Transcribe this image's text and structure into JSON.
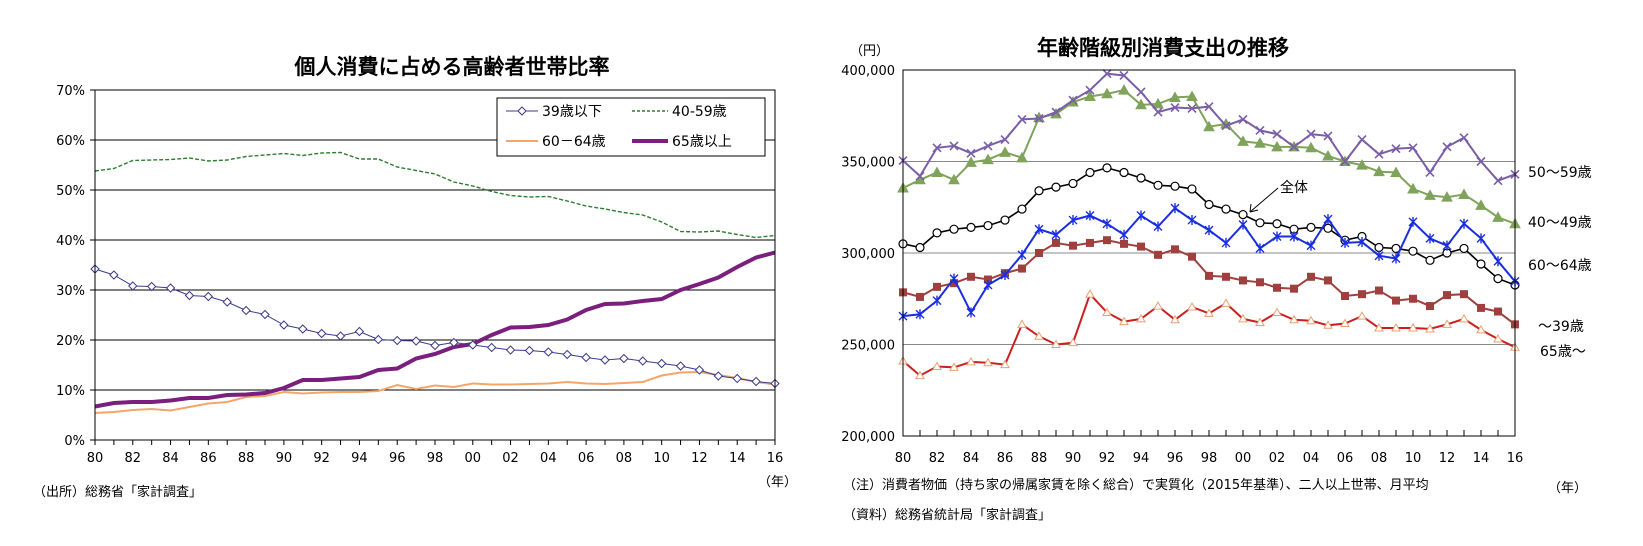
{
  "chart_data": [
    {
      "type": "line",
      "title": "個人消費に占める高齢者世帯比率",
      "x": [
        1980,
        1981,
        1982,
        1983,
        1984,
        1985,
        1986,
        1987,
        1988,
        1989,
        1990,
        1991,
        1992,
        1993,
        1994,
        1995,
        1996,
        1997,
        1998,
        1999,
        2000,
        2001,
        2002,
        2003,
        2004,
        2005,
        2006,
        2007,
        2008,
        2009,
        2010,
        2011,
        2012,
        2013,
        2014,
        2015,
        2016
      ],
      "xticks": [
        "80",
        "82",
        "84",
        "86",
        "88",
        "90",
        "92",
        "94",
        "96",
        "98",
        "00",
        "02",
        "04",
        "06",
        "08",
        "10",
        "12",
        "14",
        "16"
      ],
      "xunit": "（年）",
      "yticks": [
        "0%",
        "10%",
        "20%",
        "30%",
        "40%",
        "50%",
        "60%",
        "70%"
      ],
      "ylim": [
        0,
        70
      ],
      "grid": true,
      "legend_position": "top-right",
      "series": [
        {
          "name": "39歳以下",
          "color": "#3b3b8a",
          "style": "diamond",
          "values": [
            34.2,
            33.0,
            30.8,
            30.7,
            30.4,
            28.9,
            28.7,
            27.6,
            25.9,
            25.1,
            23.0,
            22.2,
            21.3,
            20.8,
            21.7,
            20.1,
            19.9,
            19.8,
            18.9,
            19.5,
            19.0,
            18.5,
            18.0,
            17.9,
            17.6,
            17.1,
            16.5,
            16.0,
            16.3,
            15.8,
            15.3,
            14.8,
            14.0,
            12.8,
            12.3,
            11.7,
            11.3
          ]
        },
        {
          "name": "40-59歳",
          "color": "#2e7d32",
          "style": "dashed",
          "values": [
            53.8,
            54.3,
            55.9,
            56.0,
            56.1,
            56.4,
            55.8,
            56.0,
            56.7,
            57.0,
            57.3,
            56.9,
            57.4,
            57.5,
            56.2,
            56.2,
            54.6,
            53.9,
            53.2,
            51.6,
            50.8,
            49.7,
            48.9,
            48.6,
            48.7,
            47.8,
            46.8,
            46.2,
            45.5,
            45.0,
            43.6,
            41.7,
            41.6,
            41.8,
            41.1,
            40.5,
            40.9
          ]
        },
        {
          "name": "60－64歳",
          "color": "#f4a66a",
          "style": "solid",
          "values": [
            5.4,
            5.6,
            6.0,
            6.2,
            5.9,
            6.6,
            7.3,
            7.6,
            8.6,
            8.8,
            9.6,
            9.3,
            9.5,
            9.6,
            9.6,
            9.8,
            11.0,
            10.2,
            10.9,
            10.6,
            11.3,
            11.1,
            11.1,
            11.2,
            11.3,
            11.6,
            11.3,
            11.2,
            11.4,
            11.6,
            12.9,
            13.5,
            13.6,
            13.0,
            12.4,
            11.6,
            11.1
          ]
        },
        {
          "name": "65歳以上",
          "color": "#7b1f7e",
          "style": "thick",
          "values": [
            6.7,
            7.4,
            7.6,
            7.6,
            7.9,
            8.4,
            8.4,
            9.0,
            9.1,
            9.4,
            10.4,
            12.0,
            12.0,
            12.3,
            12.6,
            14.0,
            14.3,
            16.3,
            17.2,
            18.6,
            19.2,
            21.0,
            22.5,
            22.6,
            23.0,
            24.1,
            26.0,
            27.2,
            27.3,
            27.8,
            28.2,
            30.0,
            31.2,
            32.5,
            34.6,
            36.5,
            37.5
          ]
        }
      ],
      "source": "（出所）総務省「家計調査」"
    },
    {
      "type": "line",
      "title": "年齢階級別消費支出の推移",
      "yunit": "（円）",
      "x": [
        1980,
        1981,
        1982,
        1983,
        1984,
        1985,
        1986,
        1987,
        1988,
        1989,
        1990,
        1991,
        1992,
        1993,
        1994,
        1995,
        1996,
        1997,
        1998,
        1999,
        2000,
        2001,
        2002,
        2003,
        2004,
        2005,
        2006,
        2007,
        2008,
        2009,
        2010,
        2011,
        2012,
        2013,
        2014,
        2015,
        2016
      ],
      "xticks": [
        "80",
        "82",
        "84",
        "86",
        "88",
        "90",
        "92",
        "94",
        "96",
        "98",
        "00",
        "02",
        "04",
        "06",
        "08",
        "10",
        "12",
        "14",
        "16"
      ],
      "xunit": "（年）",
      "yticks": [
        "200,000",
        "250,000",
        "300,000",
        "350,000",
        "400,000"
      ],
      "ylim": [
        200000,
        400000
      ],
      "grid": true,
      "series": [
        {
          "name": "50～59歳",
          "color": "#7a5ea8",
          "marker": "x",
          "values": [
            350500,
            342000,
            357500,
            358500,
            354500,
            358500,
            362000,
            373000,
            373500,
            377000,
            383500,
            389000,
            398000,
            397000,
            388000,
            377000,
            379500,
            379000,
            380000,
            369500,
            373000,
            367000,
            365000,
            358000,
            365000,
            364000,
            350000,
            362000,
            354000,
            357000,
            357500,
            344000,
            358000,
            363000,
            350000,
            339500,
            343000
          ]
        },
        {
          "name": "40～49歳",
          "color": "#7fa35a",
          "marker": "triangle",
          "values": [
            335500,
            340000,
            344000,
            340000,
            349500,
            351000,
            355000,
            352000,
            374000,
            376000,
            382500,
            385500,
            387000,
            389000,
            381000,
            381500,
            385000,
            385500,
            369000,
            370500,
            361000,
            360000,
            358000,
            358000,
            357500,
            353000,
            350000,
            348000,
            344500,
            344000,
            335000,
            331500,
            330500,
            332000,
            326000,
            319500,
            316000
          ]
        },
        {
          "name": "全体",
          "color": "#000000",
          "marker": "circle",
          "values": [
            305000,
            303000,
            311000,
            313000,
            314000,
            315000,
            318000,
            324000,
            334000,
            336000,
            338000,
            344000,
            346500,
            344000,
            341000,
            337000,
            336500,
            335000,
            326500,
            324000,
            321000,
            316500,
            316000,
            313000,
            314000,
            313500,
            307000,
            309000,
            303000,
            302500,
            301000,
            296000,
            300000,
            302500,
            294000,
            286000,
            282500
          ]
        },
        {
          "name": "60～64歳",
          "color": "#1a2ee0",
          "marker": "star",
          "values": [
            265500,
            266500,
            274000,
            286000,
            267500,
            282500,
            288000,
            299000,
            313000,
            310000,
            318000,
            320500,
            316000,
            310000,
            320500,
            314500,
            324500,
            318000,
            312500,
            305500,
            315500,
            302500,
            309000,
            309000,
            304000,
            318500,
            305500,
            306000,
            298500,
            297000,
            317000,
            308000,
            304000,
            316000,
            308000,
            295500,
            284500
          ]
        },
        {
          "name": "～39歳",
          "color": "#a0403e",
          "marker": "square",
          "values": [
            278500,
            276000,
            281500,
            283500,
            287000,
            285500,
            289000,
            291500,
            300000,
            305500,
            304000,
            305500,
            307000,
            305000,
            303500,
            299000,
            302000,
            298000,
            287500,
            287000,
            285000,
            284000,
            281000,
            280500,
            287000,
            285000,
            276500,
            277500,
            279500,
            274000,
            275000,
            271000,
            277000,
            277500,
            270000,
            268000,
            261000
          ]
        },
        {
          "name": "65歳～",
          "color": "#cc1e1e",
          "marker": "triangle-open",
          "values": [
            241000,
            233000,
            238000,
            237500,
            240500,
            240000,
            239000,
            261000,
            254500,
            250000,
            251000,
            277500,
            267500,
            262500,
            264000,
            271000,
            263500,
            270500,
            267000,
            272500,
            264000,
            262000,
            267500,
            263500,
            263000,
            260500,
            261500,
            265500,
            259000,
            259000,
            259000,
            258500,
            261000,
            264000,
            258000,
            253000,
            248500
          ]
        }
      ],
      "annotation": "全体",
      "note": "（注）消費者物価（持ち家の帰属家賃を除く総合）で実質化（2015年基準）、二人以上世帯、月平均",
      "source": "（資料）総務省統計局「家計調査」"
    }
  ]
}
